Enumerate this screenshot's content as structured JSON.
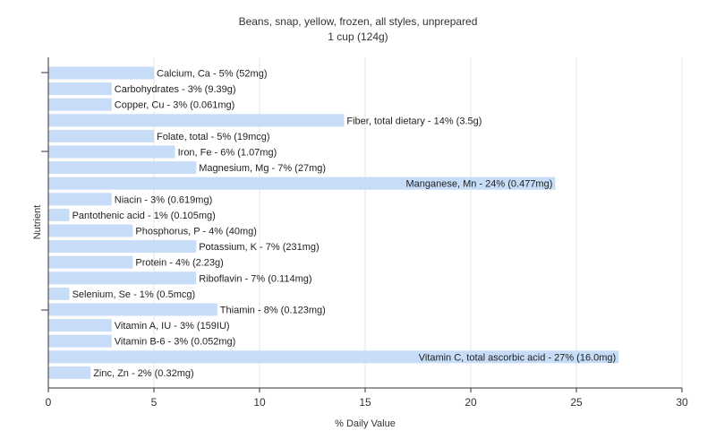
{
  "chart_data": {
    "type": "bar",
    "orientation": "horizontal",
    "title": "Beans, snap, yellow, frozen, all styles, unprepared",
    "subtitle": "1 cup (124g)",
    "xlabel": "% Daily Value",
    "ylabel": "Nutrient",
    "xlim": [
      0,
      30
    ],
    "xticks": [
      0,
      5,
      10,
      15,
      20,
      25,
      30
    ],
    "grid": true,
    "bar_color": "#c6dcf7",
    "categories": [
      "Calcium, Ca",
      "Carbohydrates",
      "Copper, Cu",
      "Fiber, total dietary",
      "Folate, total",
      "Iron, Fe",
      "Magnesium, Mg",
      "Manganese, Mn",
      "Niacin",
      "Pantothenic acid",
      "Phosphorus, P",
      "Potassium, K",
      "Protein",
      "Riboflavin",
      "Selenium, Se",
      "Thiamin",
      "Vitamin A, IU",
      "Vitamin B-6",
      "Vitamin C, total ascorbic acid",
      "Zinc, Zn"
    ],
    "values": [
      5,
      3,
      3,
      14,
      5,
      6,
      7,
      24,
      3,
      1,
      4,
      7,
      4,
      7,
      1,
      8,
      3,
      3,
      27,
      2
    ],
    "labels": [
      "Calcium, Ca - 5% (52mg)",
      "Carbohydrates - 3% (9.39g)",
      "Copper, Cu - 3% (0.061mg)",
      "Fiber, total dietary - 14% (3.5g)",
      "Folate, total - 5% (19mcg)",
      "Iron, Fe - 6% (1.07mg)",
      "Magnesium, Mg - 7% (27mg)",
      "Manganese, Mn - 24% (0.477mg)",
      "Niacin - 3% (0.619mg)",
      "Pantothenic acid - 1% (0.105mg)",
      "Phosphorus, P - 4% (40mg)",
      "Potassium, K - 7% (231mg)",
      "Protein - 4% (2.23g)",
      "Riboflavin - 7% (0.114mg)",
      "Selenium, Se - 1% (0.5mcg)",
      "Thiamin - 8% (0.123mg)",
      "Vitamin A, IU - 3% (159IU)",
      "Vitamin B-6 - 3% (0.052mg)",
      "Vitamin C, total ascorbic acid - 27% (16.0mg)",
      "Zinc, Zn - 2% (0.32mg)"
    ]
  }
}
